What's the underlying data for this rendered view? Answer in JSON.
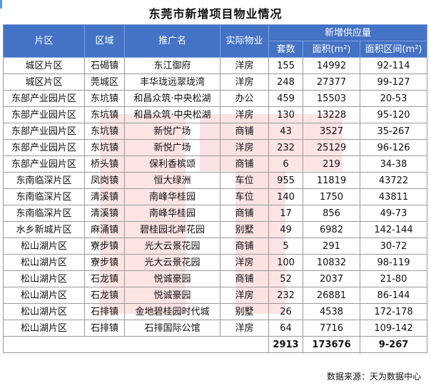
{
  "title": "东莞市新增项目物业情况",
  "headers": {
    "area": "片区",
    "town": "区域",
    "name": "推广名",
    "type": "实际物业",
    "supply": "新增供应量",
    "units": "套数",
    "size": "面积(m²)",
    "range": "面积区间(m²)"
  },
  "rows": [
    {
      "area": "城区片区",
      "town": "石碣镇",
      "name": "东江御府",
      "type": "洋房",
      "units": "155",
      "size": "14992",
      "range": "92-114"
    },
    {
      "area": "城区片区",
      "town": "莞城区",
      "name": "丰华珑远翠珑湾",
      "type": "洋房",
      "units": "248",
      "size": "27377",
      "range": "99-127"
    },
    {
      "area": "东部产业园片区",
      "town": "东坑镇",
      "name": "和昌众筑·中央松湖",
      "type": "办公",
      "units": "459",
      "size": "15503",
      "range": "20-53"
    },
    {
      "area": "东部产业园片区",
      "town": "东坑镇",
      "name": "和昌众筑·中央松湖",
      "type": "洋房",
      "units": "130",
      "size": "13228",
      "range": "95-120"
    },
    {
      "area": "东部产业园片区",
      "town": "东坑镇",
      "name": "新悦广场",
      "type": "商铺",
      "units": "43",
      "size": "3527",
      "range": "35-267"
    },
    {
      "area": "东部产业园片区",
      "town": "东坑镇",
      "name": "新悦广场",
      "type": "洋房",
      "units": "232",
      "size": "25129",
      "range": "96-126"
    },
    {
      "area": "东部产业园片区",
      "town": "桥头镇",
      "name": "保利香槟颂",
      "type": "商铺",
      "units": "6",
      "size": "219",
      "range": "34-38"
    },
    {
      "area": "东南临深片区",
      "town": "凤岗镇",
      "name": "恒大绿洲",
      "type": "车位",
      "units": "955",
      "size": "11819",
      "range": "43722"
    },
    {
      "area": "东南临深片区",
      "town": "清溪镇",
      "name": "南峰华桂园",
      "type": "车位",
      "units": "140",
      "size": "1750",
      "range": "43811"
    },
    {
      "area": "东南临深片区",
      "town": "清溪镇",
      "name": "南峰华桂园",
      "type": "商铺",
      "units": "17",
      "size": "856",
      "range": "49-73"
    },
    {
      "area": "水乡新城片区",
      "town": "麻涌镇",
      "name": "碧桂园北岸花园",
      "type": "别墅",
      "units": "49",
      "size": "6982",
      "range": "142-144"
    },
    {
      "area": "松山湖片区",
      "town": "寮步镇",
      "name": "光大云景花园",
      "type": "商铺",
      "units": "5",
      "size": "291",
      "range": "30-72"
    },
    {
      "area": "松山湖片区",
      "town": "寮步镇",
      "name": "光大云景花园",
      "type": "洋房",
      "units": "100",
      "size": "10832",
      "range": "98-119"
    },
    {
      "area": "松山湖片区",
      "town": "石龙镇",
      "name": "悦诚豪园",
      "type": "商铺",
      "units": "52",
      "size": "2037",
      "range": "21-80"
    },
    {
      "area": "松山湖片区",
      "town": "石龙镇",
      "name": "悦诚豪园",
      "type": "洋房",
      "units": "232",
      "size": "26881",
      "range": "86-144"
    },
    {
      "area": "松山湖片区",
      "town": "石排镇",
      "name": "金地碧桂园时代城",
      "type": "别墅",
      "units": "26",
      "size": "4538",
      "range": "172-178"
    },
    {
      "area": "松山湖片区",
      "town": "石排镇",
      "name": "石排国际公馆",
      "type": "洋房",
      "units": "64",
      "size": "7716",
      "range": "109-142"
    }
  ],
  "totals": {
    "units": "2913",
    "size": "173676",
    "range": "9-267"
  },
  "source": "数据来源：天为数据中心",
  "colors": {
    "header_bg": "#4472c4",
    "header_text": "#ffffff",
    "watermark": "#e8322e"
  }
}
